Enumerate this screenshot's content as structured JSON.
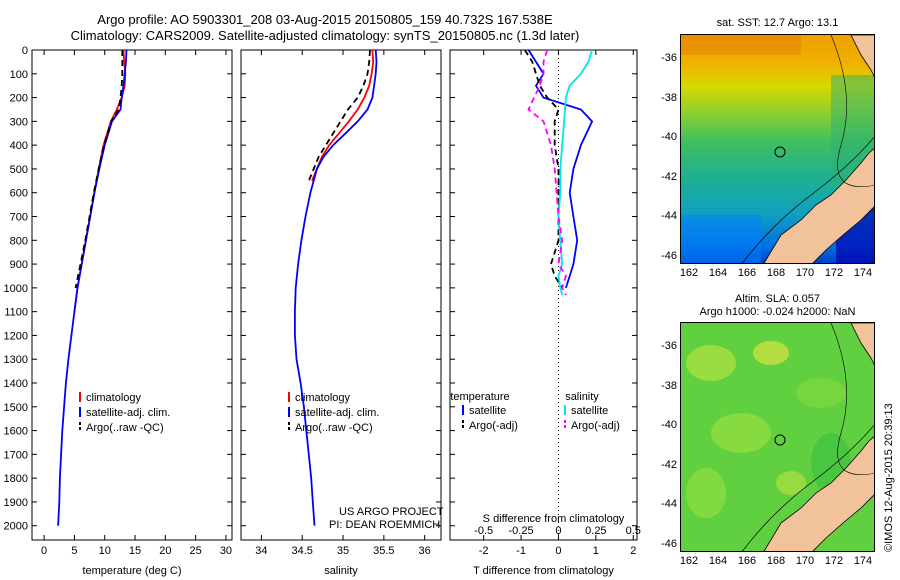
{
  "header": {
    "title_line1": "Argo profile: AO 5903301_208 03-Aug-2015 20150805_159 40.732S 167.538E",
    "title_line2": "Climatology: CARS2009. Satellite-adjusted climatology: synTS_20150805.nc (1.3d later)"
  },
  "credits": {
    "project": "US ARGO PROJECT",
    "pi": "PI: DEAN ROEMMICH",
    "imos": "©IMOS 12-Aug-2015 20:39:13"
  },
  "colors": {
    "climatology": "#ff0000",
    "satellite": "#0000ff",
    "argo": "#000000",
    "satellite_salinity": "#00ffff",
    "argo_salinity": "#ff00ff",
    "land": "#f2c29a"
  },
  "chart_data": [
    {
      "type": "line",
      "xlabel": "temperature (deg C)",
      "ylabel": "",
      "xlim": [
        -2,
        31
      ],
      "ylim": [
        2060,
        0
      ],
      "xticks": [
        0,
        5,
        10,
        15,
        20,
        25,
        30
      ],
      "yticks": [
        0,
        100,
        200,
        300,
        400,
        500,
        600,
        700,
        800,
        900,
        1000,
        1100,
        1200,
        1300,
        1400,
        1500,
        1600,
        1700,
        1800,
        1900,
        2000
      ],
      "legend": [
        "climatology",
        "satellite-adj. clim.",
        "Argo(..raw -QC)"
      ],
      "series": [
        {
          "name": "climatology",
          "color": "#ff0000",
          "dash": "",
          "x": [
            13.1,
            13.2,
            13.4,
            13.3,
            12.8,
            12.0,
            11.0,
            9.8,
            9.0,
            8.3,
            7.6,
            6.9,
            6.2,
            5.5,
            5.0
          ],
          "y": [
            0,
            50,
            100,
            150,
            200,
            250,
            300,
            400,
            500,
            600,
            700,
            800,
            900,
            1000,
            1100
          ]
        },
        {
          "name": "satellite-adj. clim.",
          "color": "#0000ff",
          "dash": "",
          "x": [
            13.6,
            13.5,
            13.3,
            13.1,
            12.8,
            12.6,
            11.2,
            10.0,
            9.1,
            8.3,
            7.6,
            6.9,
            6.2,
            5.5,
            5.0,
            4.5,
            4.0,
            3.6,
            3.3,
            3.0,
            2.8,
            2.6,
            2.5,
            2.4,
            2.3
          ],
          "y": [
            0,
            50,
            100,
            150,
            200,
            250,
            300,
            400,
            500,
            600,
            700,
            800,
            900,
            1000,
            1100,
            1200,
            1300,
            1400,
            1500,
            1600,
            1700,
            1800,
            1900,
            1950,
            2000
          ]
        },
        {
          "name": "Argo(..raw -QC)",
          "color": "#000000",
          "dash": "6,4",
          "x": [
            12.9,
            12.9,
            12.9,
            12.8,
            12.6,
            12.3,
            11.1,
            9.9,
            9.0,
            8.2,
            7.5,
            6.8,
            6.0,
            5.2
          ],
          "y": [
            0,
            50,
            100,
            150,
            200,
            250,
            300,
            400,
            500,
            600,
            700,
            800,
            900,
            1000
          ]
        }
      ]
    },
    {
      "type": "line",
      "xlabel": "salinity",
      "ylabel": "",
      "xlim": [
        33.75,
        36.2
      ],
      "ylim": [
        2060,
        0
      ],
      "xticks": [
        34,
        34.5,
        35,
        35.5,
        36
      ],
      "yticks": [],
      "legend": [
        "climatology",
        "satellite-adj. clim.",
        "Argo(..raw -QC)"
      ],
      "series": [
        {
          "name": "climatology",
          "color": "#ff0000",
          "dash": "",
          "x": [
            35.36,
            35.37,
            35.35,
            35.32,
            35.26,
            35.18,
            35.07,
            34.95,
            34.83,
            34.74,
            34.68,
            34.62
          ],
          "y": [
            0,
            50,
            100,
            150,
            200,
            250,
            300,
            350,
            400,
            450,
            500,
            550
          ]
        },
        {
          "name": "satellite-adj. clim.",
          "color": "#0000ff",
          "dash": "",
          "x": [
            35.4,
            35.41,
            35.4,
            35.38,
            35.36,
            35.3,
            35.18,
            35.03,
            34.88,
            34.76,
            34.68,
            34.6,
            34.54,
            34.49,
            34.45,
            34.42,
            34.41,
            34.41,
            34.43,
            34.48,
            34.52,
            34.55,
            34.58,
            34.61,
            34.63,
            34.65
          ],
          "y": [
            0,
            50,
            100,
            150,
            200,
            250,
            300,
            350,
            400,
            450,
            500,
            600,
            700,
            800,
            900,
            1000,
            1100,
            1200,
            1300,
            1400,
            1500,
            1600,
            1700,
            1800,
            1900,
            2000
          ]
        },
        {
          "name": "Argo(..raw -QC)",
          "color": "#000000",
          "dash": "6,4",
          "x": [
            35.33,
            35.32,
            35.3,
            35.25,
            35.18,
            35.06,
            34.97,
            34.88,
            34.79,
            34.7,
            34.64,
            34.58
          ],
          "y": [
            0,
            50,
            100,
            150,
            200,
            250,
            300,
            350,
            400,
            450,
            500,
            550
          ]
        }
      ]
    },
    {
      "type": "line",
      "xlabel": "T difference from climatology",
      "xlabel2": "S difference from climatology",
      "xlim": [
        -2.9,
        2.1
      ],
      "ylim": [
        2060,
        0
      ],
      "xticks": [
        -2,
        -1,
        0,
        1,
        2
      ],
      "xticks_top": [
        "-0.5",
        "-0.25",
        "0",
        "0.25",
        "0.5"
      ],
      "zero_line": 0,
      "legend_headers": [
        "temperature",
        "salinity"
      ],
      "legend": [
        "satellite",
        "Argo(-adj)",
        "satellite",
        "Argo(-adj)"
      ],
      "series": [
        {
          "name": "satellite",
          "group": "temperature",
          "color": "#0000ff",
          "dash": "",
          "x": [
            -0.8,
            -0.6,
            -0.4,
            -0.6,
            -0.4,
            0.6,
            0.9,
            0.6,
            0.4,
            0.3,
            0.4,
            0.5,
            0.4,
            0.3,
            0.2
          ],
          "y": [
            0,
            50,
            100,
            150,
            200,
            250,
            300,
            400,
            500,
            600,
            700,
            800,
            900,
            950,
            1000
          ]
        },
        {
          "name": "Argo(-adj)",
          "group": "temperature",
          "color": "#000000",
          "dash": "6,4",
          "x": [
            -0.9,
            -0.7,
            -0.6,
            -0.5,
            -0.3,
            0.0,
            -0.1,
            -0.1,
            0.0,
            0.0,
            0.0,
            0.0,
            -0.2,
            -0.1,
            0.1
          ],
          "y": [
            0,
            50,
            100,
            150,
            200,
            250,
            300,
            400,
            500,
            600,
            700,
            800,
            900,
            950,
            1000
          ]
        },
        {
          "name": "satellite",
          "group": "salinity",
          "color": "#00e5ee",
          "dash": "",
          "x": [
            0.9,
            0.8,
            0.6,
            0.3,
            0.2,
            0.15,
            0.1,
            0.05,
            0.05,
            0.0,
            0.05,
            0.1,
            0.0,
            0.05,
            0.1
          ],
          "y": [
            0,
            50,
            100,
            150,
            200,
            300,
            400,
            500,
            600,
            700,
            800,
            900,
            950,
            1000,
            1030
          ]
        },
        {
          "name": "Argo(-adj)",
          "group": "salinity",
          "color": "#ff00ff",
          "dash": "6,4",
          "x": [
            -0.3,
            -0.4,
            -0.4,
            -0.5,
            -0.8,
            -0.4,
            -0.2,
            -0.1,
            -0.05,
            0.0,
            0.1,
            0.0,
            0.2,
            0.1,
            0.2
          ],
          "y": [
            0,
            50,
            100,
            150,
            250,
            300,
            400,
            500,
            600,
            700,
            800,
            900,
            950,
            1000,
            1030
          ]
        }
      ]
    }
  ],
  "maps": [
    {
      "title": "sat. SST: 12.7 Argo: 13.1",
      "xticks": [
        "162",
        "164",
        "166",
        "168",
        "170",
        "172",
        "174"
      ],
      "yticks": [
        "-36",
        "-38",
        "-40",
        "-42",
        "-44",
        "-46"
      ],
      "marker": {
        "lon": 167.5,
        "lat": -40.7
      }
    },
    {
      "title": "Altim. SLA: 0.057",
      "subtitle": "Argo h1000: -0.024 h2000: NaN",
      "xticks": [
        "162",
        "164",
        "166",
        "168",
        "170",
        "172",
        "174"
      ],
      "yticks": [
        "-36",
        "-38",
        "-40",
        "-42",
        "-44",
        "-46"
      ],
      "marker": {
        "lon": 167.5,
        "lat": -40.7
      }
    }
  ]
}
